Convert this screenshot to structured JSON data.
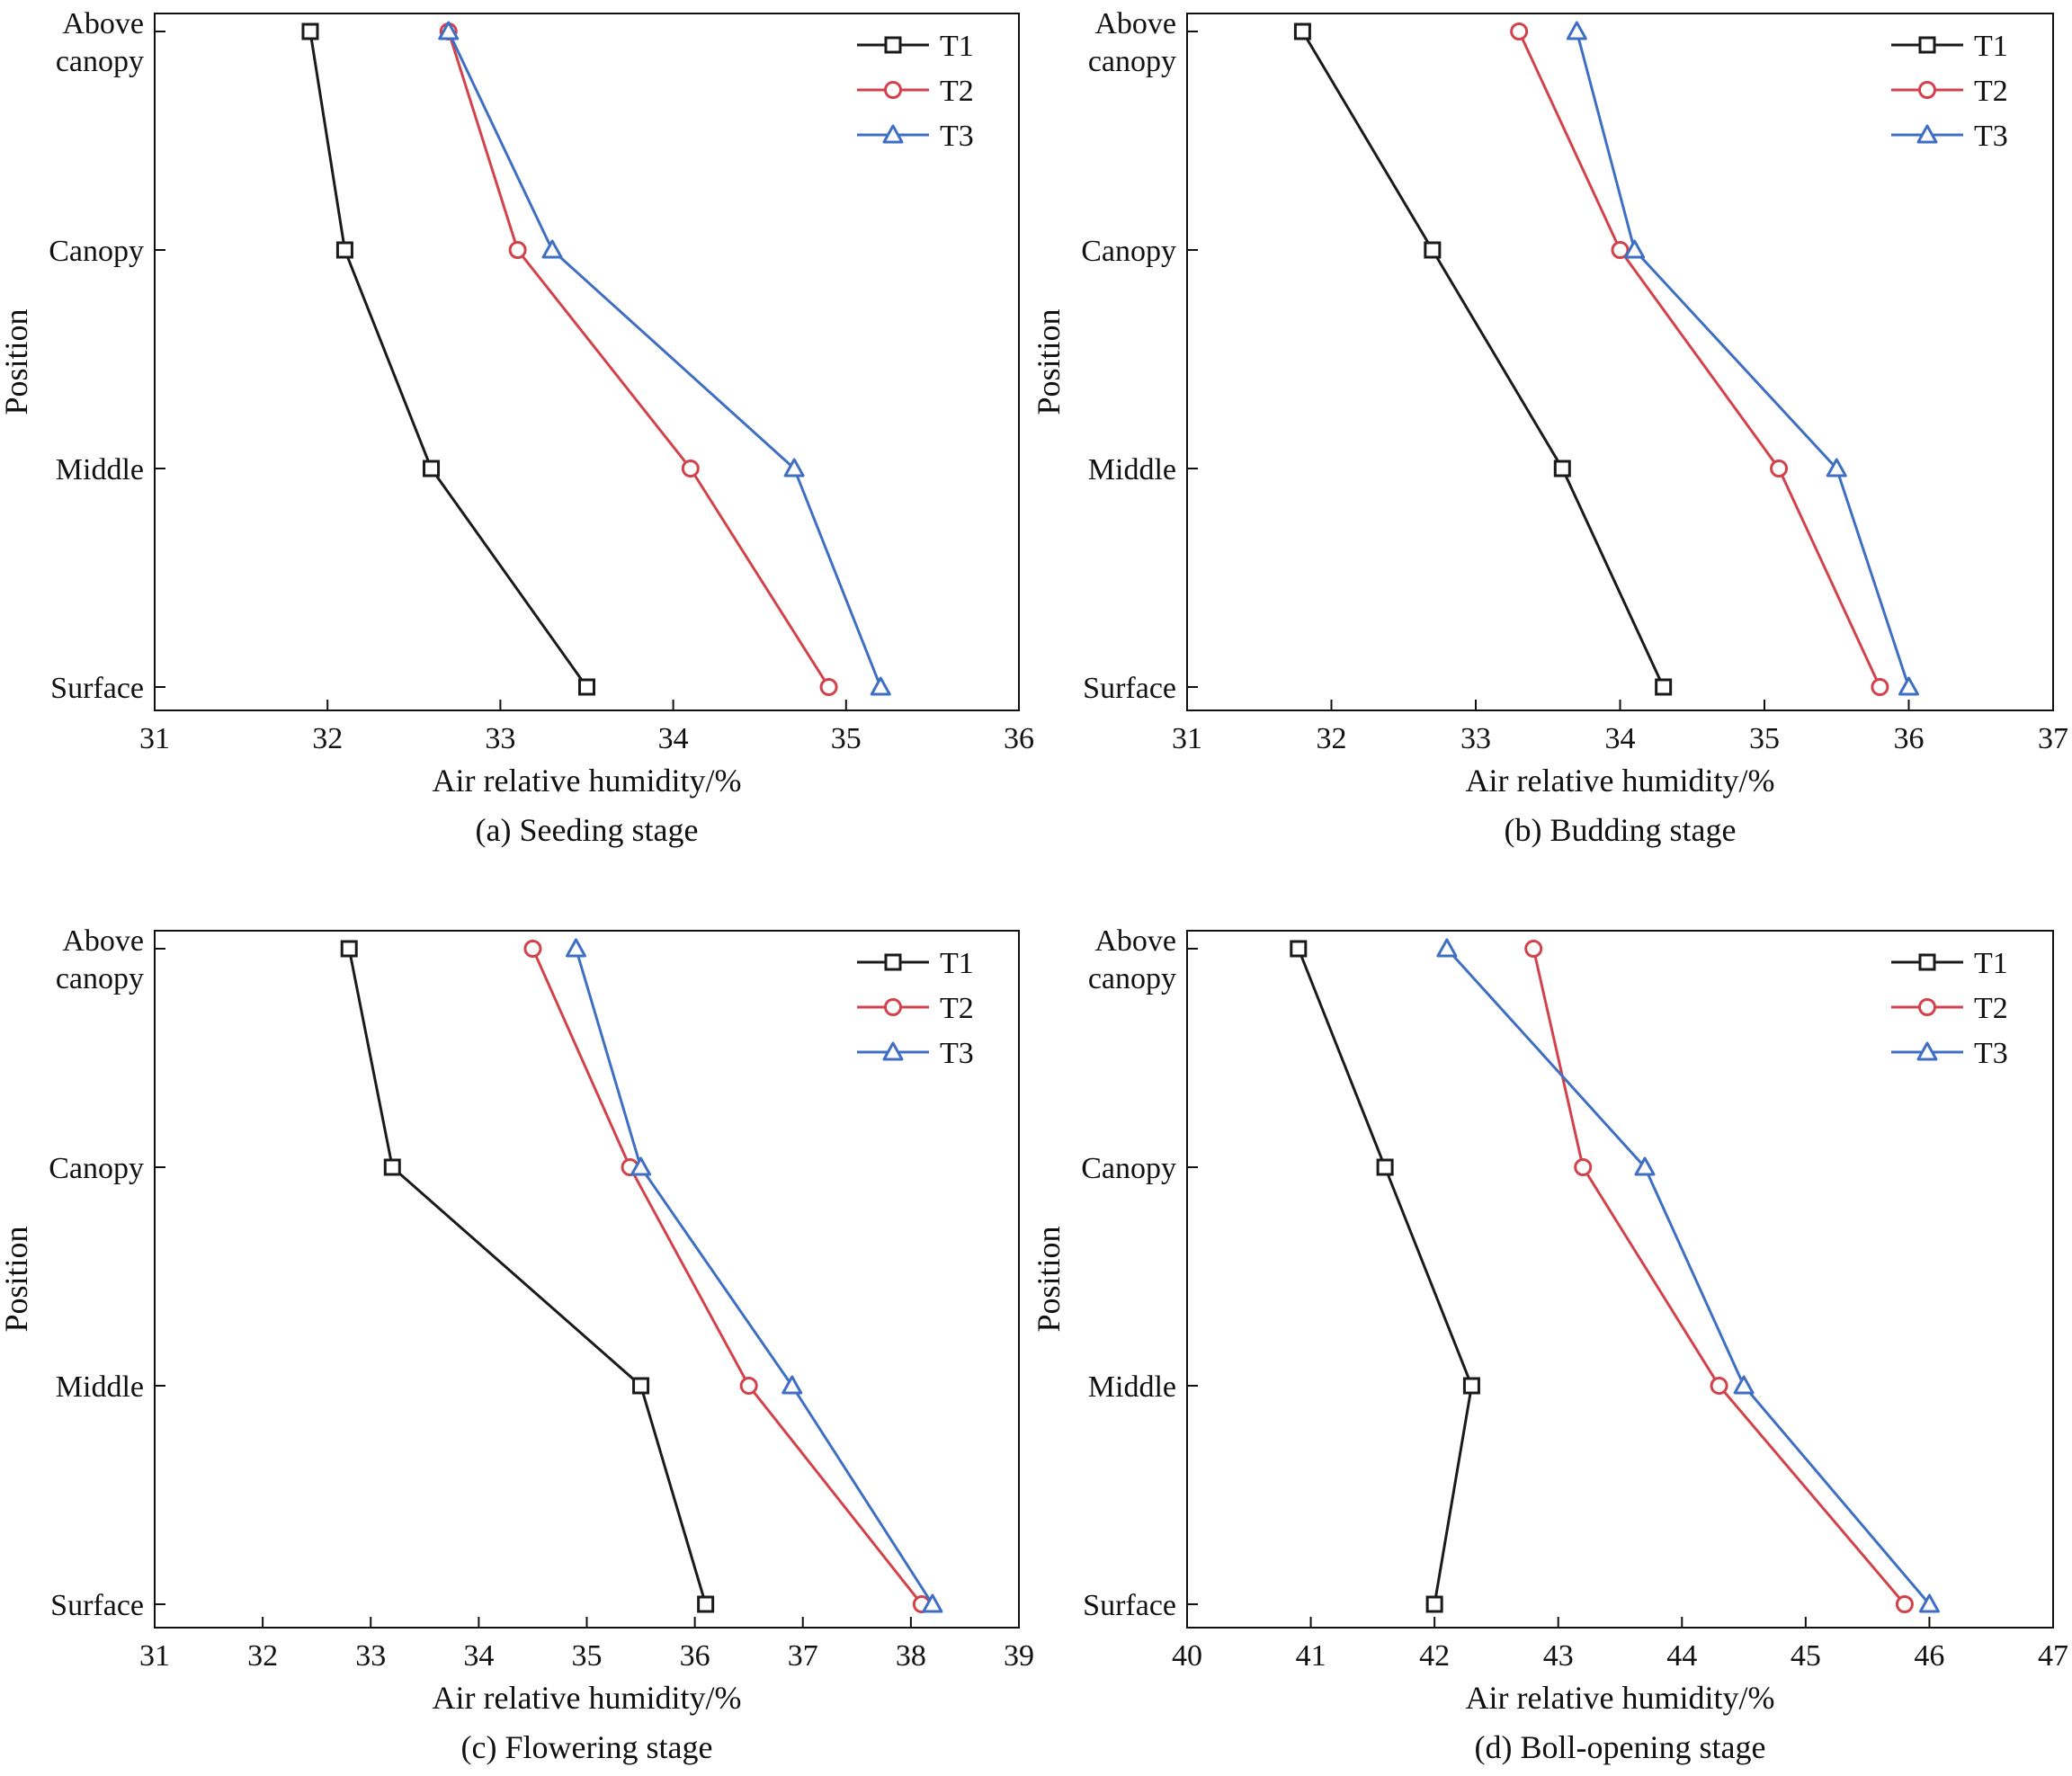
{
  "chart_data": [
    {
      "type": "line",
      "caption": "(a) Seeding stage",
      "xlabel": "Air relative humidity/%",
      "ylabel": "Position",
      "xlim": [
        31,
        36
      ],
      "xticks": [
        "31",
        "32",
        "33",
        "34",
        "35",
        "36"
      ],
      "categories": [
        "Above canopy",
        "Canopy",
        "Middle",
        "Surface"
      ],
      "category_lines": [
        [
          "Above",
          "canopy"
        ],
        [
          "Canopy"
        ],
        [
          "Middle"
        ],
        [
          "Surface"
        ]
      ],
      "legend_position": "top-right",
      "series": [
        {
          "name": "T1",
          "marker": "square",
          "values": [
            31.9,
            32.1,
            32.6,
            33.5
          ]
        },
        {
          "name": "T2",
          "marker": "circle",
          "values": [
            32.7,
            33.1,
            34.1,
            34.9
          ]
        },
        {
          "name": "T3",
          "marker": "triangle",
          "values": [
            32.7,
            33.3,
            34.7,
            35.2
          ]
        }
      ]
    },
    {
      "type": "line",
      "caption": "(b) Budding stage",
      "xlabel": "Air relative humidity/%",
      "ylabel": "Position",
      "xlim": [
        31,
        37
      ],
      "xticks": [
        "31",
        "32",
        "33",
        "34",
        "35",
        "36",
        "37"
      ],
      "categories": [
        "Above canopy",
        "Canopy",
        "Middle",
        "Surface"
      ],
      "category_lines": [
        [
          "Above",
          "canopy"
        ],
        [
          "Canopy"
        ],
        [
          "Middle"
        ],
        [
          "Surface"
        ]
      ],
      "legend_position": "top-right",
      "series": [
        {
          "name": "T1",
          "marker": "square",
          "values": [
            31.8,
            32.7,
            33.6,
            34.3
          ]
        },
        {
          "name": "T2",
          "marker": "circle",
          "values": [
            33.3,
            34.0,
            35.1,
            35.8
          ]
        },
        {
          "name": "T3",
          "marker": "triangle",
          "values": [
            33.7,
            34.1,
            35.5,
            36.0
          ]
        }
      ]
    },
    {
      "type": "line",
      "caption": "(c) Flowering stage",
      "xlabel": "Air relative humidity/%",
      "ylabel": "Position",
      "xlim": [
        31,
        39
      ],
      "xticks": [
        "31",
        "32",
        "33",
        "34",
        "35",
        "36",
        "37",
        "38",
        "39"
      ],
      "categories": [
        "Above canopy",
        "Canopy",
        "Middle",
        "Surface"
      ],
      "category_lines": [
        [
          "Above",
          "canopy"
        ],
        [
          "Canopy"
        ],
        [
          "Middle"
        ],
        [
          "Surface"
        ]
      ],
      "legend_position": "top-right",
      "series": [
        {
          "name": "T1",
          "marker": "square",
          "values": [
            32.8,
            33.2,
            35.5,
            36.1
          ]
        },
        {
          "name": "T2",
          "marker": "circle",
          "values": [
            34.5,
            35.4,
            36.5,
            38.1
          ]
        },
        {
          "name": "T3",
          "marker": "triangle",
          "values": [
            34.9,
            35.5,
            36.9,
            38.2
          ]
        }
      ]
    },
    {
      "type": "line",
      "caption": "(d) Boll-opening stage",
      "xlabel": "Air relative humidity/%",
      "ylabel": "Position",
      "xlim": [
        40,
        47
      ],
      "xticks": [
        "40",
        "41",
        "42",
        "43",
        "44",
        "45",
        "46",
        "47"
      ],
      "categories": [
        "Above canopy",
        "Canopy",
        "Middle",
        "Surface"
      ],
      "category_lines": [
        [
          "Above",
          "canopy"
        ],
        [
          "Canopy"
        ],
        [
          "Middle"
        ],
        [
          "Surface"
        ]
      ],
      "legend_position": "top-right",
      "series": [
        {
          "name": "T1",
          "marker": "square",
          "values": [
            40.9,
            41.6,
            42.3,
            42.0
          ]
        },
        {
          "name": "T2",
          "marker": "circle",
          "values": [
            42.8,
            43.2,
            44.3,
            45.8
          ]
        },
        {
          "name": "T3",
          "marker": "triangle",
          "values": [
            42.1,
            43.7,
            44.5,
            46.0
          ]
        }
      ]
    }
  ],
  "colors": {
    "T1": "#1a1a1a",
    "T2": "#d2424a",
    "T3": "#3f6fc2",
    "axis": "#111111"
  }
}
